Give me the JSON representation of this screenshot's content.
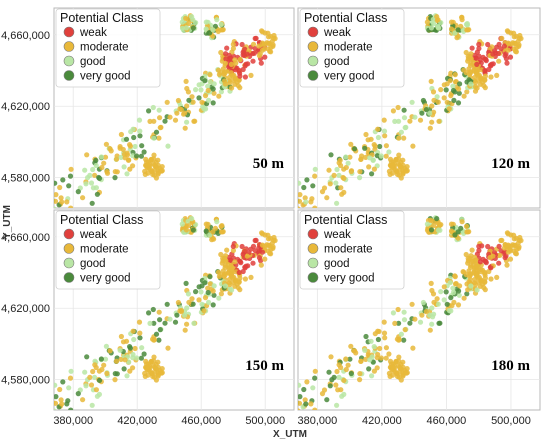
{
  "chart_data": {
    "type": "scatter",
    "xlabel": "X_UTM",
    "ylabel": "Y_UTM",
    "x_ticks": [
      380000,
      420000,
      460000,
      500000
    ],
    "x_tick_labels": [
      "380,000",
      "420,000",
      "460,000",
      "500,000"
    ],
    "y_ticks": [
      4580000,
      4620000,
      4660000
    ],
    "y_tick_labels": [
      "4,580,000",
      "4,620,000",
      "4,660,000"
    ],
    "xlim": [
      368000,
      518000
    ],
    "ylim": [
      4563000,
      4675000
    ],
    "grid": true,
    "legend": {
      "title": "Potential Class",
      "placement": "top-left",
      "entries": [
        {
          "name": "weak",
          "color": "#e0403c"
        },
        {
          "name": "moderate",
          "color": "#e8b83a"
        },
        {
          "name": "good",
          "color": "#b9e6a5"
        },
        {
          "name": "very good",
          "color": "#4a8a3c"
        }
      ]
    },
    "panels": [
      {
        "label": "50 m"
      },
      {
        "label": "120 m"
      },
      {
        "label": "150 m"
      },
      {
        "label": "180 m"
      }
    ]
  }
}
